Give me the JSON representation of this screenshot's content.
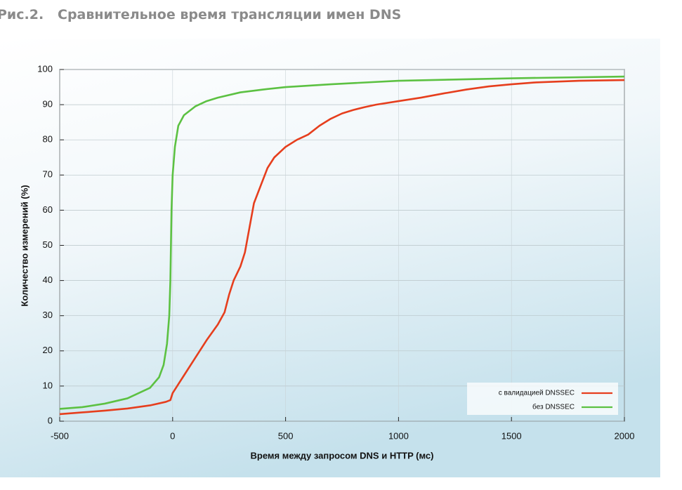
{
  "chart_data": {
    "type": "line",
    "title": "Рис.2.   Сравнительное время трансляции имен DNS",
    "x_label": "Время между запросом DNS и HTTP (мс)",
    "y_label": "Количество измерений (%)",
    "xlim": [
      -500,
      2000
    ],
    "xticks": [
      -500,
      0,
      500,
      1000,
      1500,
      2000
    ],
    "ylim": [
      0,
      100
    ],
    "yticks": [
      0,
      10,
      20,
      30,
      40,
      50,
      60,
      70,
      80,
      90,
      100
    ],
    "grid": true,
    "legend": "lower right",
    "series": [
      {
        "name": "с валидацией DNSSEC",
        "color": "#e63e1d",
        "x": [
          -500,
          -400,
          -300,
          -200,
          -100,
          -30,
          -10,
          0,
          20,
          50,
          100,
          150,
          200,
          230,
          250,
          270,
          300,
          320,
          340,
          360,
          390,
          420,
          450,
          500,
          550,
          600,
          650,
          700,
          750,
          800,
          850,
          900,
          1000,
          1100,
          1200,
          1300,
          1400,
          1500,
          1600,
          1800,
          2000
        ],
        "values": [
          2,
          2.5,
          3,
          3.6,
          4.5,
          5.5,
          6,
          8,
          10,
          13,
          18,
          23,
          27.5,
          31,
          36,
          40,
          44,
          48,
          55,
          62,
          67,
          72,
          75,
          78,
          80,
          81.5,
          84,
          86,
          87.5,
          88.5,
          89.3,
          90,
          91,
          92,
          93.2,
          94.3,
          95.2,
          95.8,
          96.3,
          96.8,
          97
        ]
      },
      {
        "name": "без DNSSEC",
        "color": "#5cc142",
        "x": [
          -500,
          -400,
          -300,
          -200,
          -100,
          -60,
          -40,
          -25,
          -15,
          -10,
          -5,
          0,
          10,
          25,
          50,
          100,
          150,
          200,
          300,
          400,
          500,
          700,
          1000,
          1500,
          2000
        ],
        "values": [
          3.5,
          4,
          5,
          6.5,
          9.5,
          12.5,
          16,
          22,
          30,
          40,
          60,
          70,
          78,
          84,
          87,
          89.5,
          91,
          92,
          93.5,
          94.3,
          95,
          95.8,
          96.8,
          97.5,
          98
        ]
      }
    ]
  }
}
